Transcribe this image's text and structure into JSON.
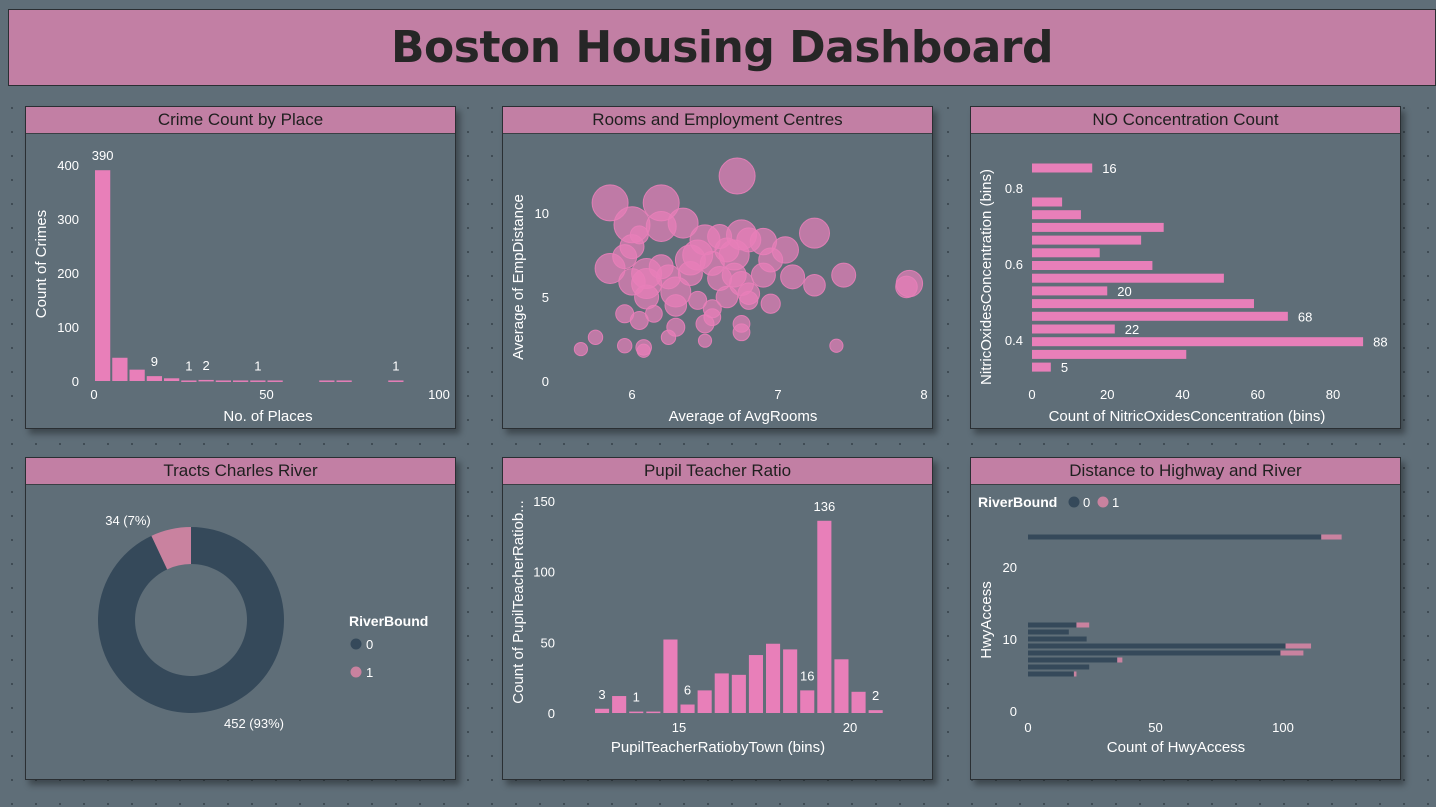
{
  "dashboard": {
    "title": "Boston Housing Dashboard"
  },
  "colors": {
    "pink": "#e87fb9",
    "pink_muted": "#c9829f",
    "navy": "#35495a",
    "text": "#ffffff"
  },
  "chart_data": [
    {
      "id": "crime",
      "type": "bar",
      "title": "Crime Count by Place",
      "xlabel": "No. of Places",
      "ylabel": "Count of Crimes",
      "xlim": [
        0,
        100
      ],
      "ylim": [
        0,
        420
      ],
      "xticks": [
        0,
        50,
        100
      ],
      "yticks": [
        0,
        100,
        200,
        300,
        400
      ],
      "bin_width": 5,
      "bins": [
        0,
        5,
        10,
        15,
        20,
        25,
        30,
        35,
        40,
        45,
        50,
        65,
        70,
        85
      ],
      "values": [
        390,
        43,
        21,
        9,
        5,
        1,
        2,
        1,
        1,
        1,
        1,
        1,
        1,
        1
      ],
      "labels": [
        {
          "bin": 0,
          "text": "390"
        },
        {
          "bin": 15,
          "text": "9"
        },
        {
          "bin": 25,
          "text": "1"
        },
        {
          "bin": 30,
          "text": "2"
        },
        {
          "bin": 45,
          "text": "1"
        },
        {
          "bin": 85,
          "text": "1"
        }
      ]
    },
    {
      "id": "rooms",
      "type": "scatter",
      "title": "Rooms and Employment Centres",
      "xlabel": "Average of AvgRooms",
      "ylabel": "Average of EmpDistance",
      "xlim": [
        5.4,
        8.0
      ],
      "ylim": [
        0,
        13
      ],
      "xticks": [
        6,
        7,
        8
      ],
      "yticks": [
        0,
        5,
        10
      ],
      "points": [
        [
          5.85,
          10.6,
          3
        ],
        [
          6.0,
          9.3,
          3
        ],
        [
          6.05,
          8.7,
          1.5
        ],
        [
          6.2,
          10.6,
          3
        ],
        [
          6.2,
          9.2,
          2.5
        ],
        [
          6.35,
          9.4,
          2.5
        ],
        [
          6.5,
          8.4,
          2.5
        ],
        [
          6.6,
          8.6,
          2
        ],
        [
          6.75,
          8.7,
          2.5
        ],
        [
          6.8,
          8.4,
          2
        ],
        [
          6.9,
          8.3,
          2.2
        ],
        [
          6.72,
          12.2,
          3
        ],
        [
          7.25,
          8.8,
          2.5
        ],
        [
          5.85,
          6.7,
          2.5
        ],
        [
          5.95,
          7.4,
          2
        ],
        [
          6.0,
          8.0,
          2
        ],
        [
          6.1,
          6.4,
          2.5
        ],
        [
          6.1,
          5.8,
          2.5
        ],
        [
          6.2,
          6.8,
          2
        ],
        [
          6.3,
          5.3,
          2.5
        ],
        [
          6.4,
          6.4,
          2
        ],
        [
          6.45,
          7.5,
          2.5
        ],
        [
          6.55,
          7.0,
          2
        ],
        [
          6.6,
          6.1,
          2
        ],
        [
          6.7,
          6.3,
          2
        ],
        [
          6.75,
          5.8,
          2
        ],
        [
          6.8,
          5.2,
          1.8
        ],
        [
          6.9,
          6.3,
          2
        ],
        [
          6.95,
          7.2,
          2
        ],
        [
          7.05,
          7.8,
          2.2
        ],
        [
          7.1,
          6.2,
          2
        ],
        [
          7.25,
          5.7,
          1.8
        ],
        [
          7.45,
          6.3,
          2
        ],
        [
          7.9,
          5.8,
          2.2
        ],
        [
          7.88,
          5.6,
          1.8
        ],
        [
          6.3,
          4.5,
          1.8
        ],
        [
          6.45,
          4.8,
          1.5
        ],
        [
          6.55,
          4.3,
          1.5
        ],
        [
          6.65,
          5.0,
          1.8
        ],
        [
          6.8,
          4.8,
          1.5
        ],
        [
          6.95,
          4.6,
          1.6
        ],
        [
          5.95,
          4.0,
          1.5
        ],
        [
          6.05,
          3.6,
          1.5
        ],
        [
          6.15,
          4.0,
          1.4
        ],
        [
          6.3,
          3.2,
          1.5
        ],
        [
          6.5,
          3.4,
          1.5
        ],
        [
          6.55,
          3.8,
          1.4
        ],
        [
          6.75,
          3.4,
          1.4
        ],
        [
          6.75,
          2.9,
          1.4
        ],
        [
          5.75,
          2.6,
          1.2
        ],
        [
          5.95,
          2.1,
          1.2
        ],
        [
          6.08,
          2.0,
          1.3
        ],
        [
          6.08,
          1.8,
          1.1
        ],
        [
          5.65,
          1.9,
          1.1
        ],
        [
          6.25,
          2.6,
          1.2
        ],
        [
          6.5,
          2.4,
          1.1
        ],
        [
          7.4,
          2.1,
          1.1
        ],
        [
          6.1,
          5.0,
          2
        ],
        [
          6.0,
          5.9,
          2.2
        ],
        [
          6.4,
          7.2,
          2.5
        ],
        [
          6.65,
          7.8,
          2
        ],
        [
          6.25,
          6.2,
          2
        ],
        [
          6.7,
          7.5,
          2.5
        ]
      ]
    },
    {
      "id": "nox",
      "type": "bar",
      "orientation": "horizontal",
      "title": "NO Concentration Count",
      "xlabel": "Count of NitricOxidesConcentration (bins)",
      "ylabel": "NitricOxidesConcentration (bins)",
      "xlim": [
        0,
        90
      ],
      "xticks": [
        0,
        20,
        40,
        60,
        80
      ],
      "ytick_labels": [
        {
          "y": 0.8,
          "text": "0.8"
        },
        {
          "y": 0.6,
          "text": "0.6"
        },
        {
          "y": 0.4,
          "text": "0.4"
        }
      ],
      "ylim": [
        0.36,
        0.88
      ],
      "bars": [
        {
          "y": 0.86,
          "value": 16,
          "label": "16"
        },
        {
          "y": 0.78,
          "value": 8,
          "label": ""
        },
        {
          "y": 0.76,
          "value": 13,
          "label": ""
        },
        {
          "y": 0.74,
          "value": 35,
          "label": ""
        },
        {
          "y": 0.72,
          "value": 29,
          "label": ""
        },
        {
          "y": 0.7,
          "value": 18,
          "label": ""
        },
        {
          "y": 0.68,
          "value": 32,
          "label": ""
        },
        {
          "y": 0.66,
          "value": 51,
          "label": ""
        },
        {
          "y": 0.64,
          "value": 20,
          "label": "20"
        },
        {
          "y": 0.62,
          "value": 59,
          "label": ""
        },
        {
          "y": 0.6,
          "value": 68,
          "label": "68"
        },
        {
          "y": 0.58,
          "value": 22,
          "label": "22"
        },
        {
          "y": 0.56,
          "value": 88,
          "label": "88"
        },
        {
          "y": 0.54,
          "value": 41,
          "label": ""
        },
        {
          "y": 0.52,
          "value": 5,
          "label": "5"
        }
      ]
    },
    {
      "id": "river",
      "type": "pie",
      "title": "Tracts Charles River",
      "legend_title": "RiverBound",
      "slices": [
        {
          "name": "0",
          "value": 452,
          "label": "452 (93%)",
          "color": "#35495a"
        },
        {
          "name": "1",
          "value": 34,
          "label": "34 (7%)",
          "color": "#c9829f"
        }
      ]
    },
    {
      "id": "pupil",
      "type": "bar",
      "title": "Pupil Teacher Ratio",
      "xlabel": "PupilTeacherRatiobyTown (bins)",
      "ylabel": "Count of PupilTeacherRatiob...",
      "xlim": [
        12.5,
        22.5
      ],
      "ylim": [
        0,
        150
      ],
      "xticks": [
        15,
        20
      ],
      "yticks": [
        0,
        50,
        100,
        150
      ],
      "bin_width": 0.5,
      "bins": [
        12.5,
        13,
        13.5,
        14,
        14.5,
        15,
        15.5,
        16,
        16.5,
        17,
        17.5,
        18,
        18.5,
        19,
        19.5,
        20,
        20.5,
        21,
        21.5
      ],
      "values": [
        3,
        12,
        1,
        1,
        52,
        6,
        16,
        28,
        27,
        41,
        49,
        45,
        16,
        136,
        38,
        15,
        2,
        0,
        0
      ],
      "labels": [
        {
          "index": 0,
          "text": "3"
        },
        {
          "index": 2,
          "text": "1"
        },
        {
          "index": 5,
          "text": "6"
        },
        {
          "index": 12,
          "text": "16"
        },
        {
          "index": 13,
          "text": "136"
        },
        {
          "index": 16,
          "text": "2"
        }
      ]
    },
    {
      "id": "highway",
      "type": "bar",
      "orientation": "horizontal",
      "stacked": true,
      "title": "Distance to Highway and River",
      "legend_title": "RiverBound",
      "legend": [
        "0",
        "1"
      ],
      "xlabel": "Count of HwyAccess",
      "ylabel": "HwyAccess",
      "xlim": [
        0,
        125
      ],
      "ylim": [
        0,
        25
      ],
      "xticks": [
        0,
        50,
        100
      ],
      "yticks": [
        0,
        10,
        20
      ],
      "bars": [
        {
          "y": 24,
          "v0": 115,
          "v1": 8
        },
        {
          "y": 8,
          "v0": 19,
          "v1": 5
        },
        {
          "y": 7,
          "v0": 16,
          "v1": 0
        },
        {
          "y": 6,
          "v0": 23,
          "v1": 0
        },
        {
          "y": 5,
          "v0": 101,
          "v1": 10
        },
        {
          "y": 4,
          "v0": 99,
          "v1": 9
        },
        {
          "y": 3,
          "v0": 35,
          "v1": 2
        },
        {
          "y": 2,
          "v0": 24,
          "v1": 0
        },
        {
          "y": 1,
          "v0": 18,
          "v1": 1
        }
      ]
    }
  ]
}
